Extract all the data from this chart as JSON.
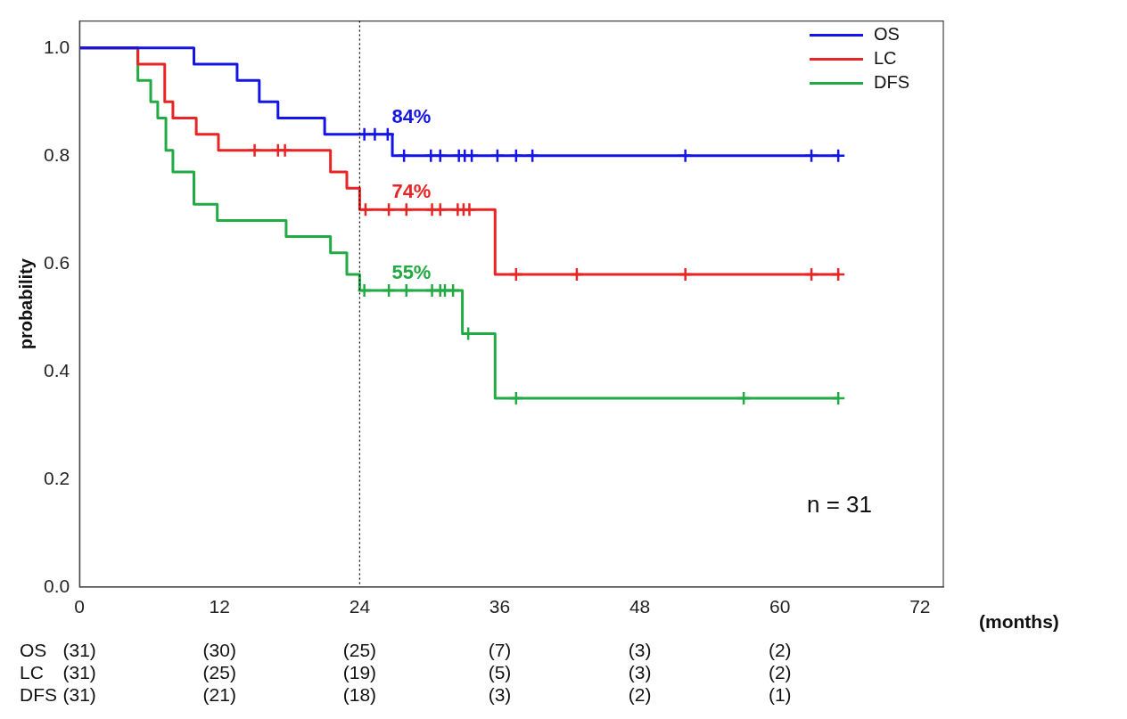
{
  "chart_data": {
    "type": "step",
    "xlabel": "(months)",
    "ylabel": "probability",
    "xlim": [
      0,
      74
    ],
    "ylim": [
      0,
      1.05
    ],
    "xticks": [
      0,
      12,
      24,
      36,
      48,
      60,
      72
    ],
    "yticks": [
      {
        "value": 0,
        "label": "0.0"
      },
      {
        "value": 0.2,
        "label": "0.2"
      },
      {
        "value": 0.4,
        "label": "0.4"
      },
      {
        "value": 0.6,
        "label": "0.6"
      },
      {
        "value": 0.8,
        "label": "0.8"
      },
      {
        "value": 1,
        "label": "1.0"
      }
    ],
    "grid": false,
    "legend": "top right",
    "line_style": "solid",
    "ref_lines": [
      {
        "axis": "x",
        "value": 24,
        "color": "#000000",
        "line_style": "dotted"
      }
    ],
    "series": [
      {
        "name": "OS",
        "color": "#1414e6",
        "marker": "none",
        "x": [
          0,
          9.8,
          13.5,
          15.4,
          17,
          21,
          26.8,
          65.1
        ],
        "values": [
          1,
          0.97,
          0.94,
          0.9,
          0.87,
          0.84,
          0.8,
          0.8
        ]
      },
      {
        "name": "LC",
        "color": "#e82424",
        "marker": "none",
        "x": [
          0,
          5,
          7.3,
          8,
          10,
          11.9,
          21.5,
          22.9,
          24,
          35.6,
          65.1
        ],
        "values": [
          1,
          0.97,
          0.9,
          0.87,
          0.84,
          0.81,
          0.77,
          0.74,
          0.7,
          0.58,
          0.58
        ]
      },
      {
        "name": "DFS",
        "color": "#22aa44",
        "marker": "none",
        "x": [
          0,
          5,
          6.1,
          6.7,
          7.4,
          8,
          9.8,
          11.8,
          17.7,
          21.5,
          22.9,
          24,
          32.8,
          35.6,
          65.1
        ],
        "values": [
          1,
          0.94,
          0.9,
          0.87,
          0.81,
          0.77,
          0.71,
          0.68,
          0.65,
          0.62,
          0.58,
          0.55,
          0.47,
          0.35,
          0.35
        ]
      },
      {
        "color": "#1414e6",
        "type": "scatter",
        "marker": "cross",
        "x": [
          24.4,
          25.3,
          26.4,
          27.8,
          30.1,
          30.9,
          32.5,
          33,
          33.6,
          35.8,
          37.4,
          38.8,
          51.9,
          62.7,
          65
        ],
        "values": [
          0.84,
          0.84,
          0.84,
          0.8,
          0.8,
          0.8,
          0.8,
          0.8,
          0.8,
          0.8,
          0.8,
          0.8,
          0.8,
          0.8,
          0.8
        ]
      },
      {
        "color": "#e82424",
        "type": "scatter",
        "marker": "cross",
        "x": [
          15,
          17,
          17.6,
          24.5,
          26.5,
          28,
          30.2,
          30.9,
          32.4,
          32.9,
          33.4,
          37.4,
          42.6,
          51.9,
          62.7,
          65
        ],
        "values": [
          0.81,
          0.81,
          0.81,
          0.7,
          0.7,
          0.7,
          0.7,
          0.7,
          0.7,
          0.7,
          0.7,
          0.58,
          0.58,
          0.58,
          0.58,
          0.58
        ]
      },
      {
        "color": "#22aa44",
        "type": "scatter",
        "marker": "cross",
        "x": [
          24.4,
          26.5,
          28,
          30.2,
          30.9,
          31.3,
          32,
          33.3,
          37.4,
          56.9,
          65
        ],
        "values": [
          0.55,
          0.55,
          0.55,
          0.55,
          0.55,
          0.55,
          0.55,
          0.47,
          0.35,
          0.35,
          0.35
        ]
      }
    ],
    "annotations": [
      "84%",
      "74%",
      "55%",
      "n = 31",
      "OS",
      "(31)",
      "(30)",
      "(25)",
      "(7)",
      "(3)",
      "(2)",
      "LC",
      "(31)",
      "(25)",
      "(19)",
      "(5)",
      "(3)",
      "(2)",
      "DFS",
      "(31)",
      "(21)",
      "(18)",
      "(3)",
      "(2)",
      "(1)"
    ]
  }
}
